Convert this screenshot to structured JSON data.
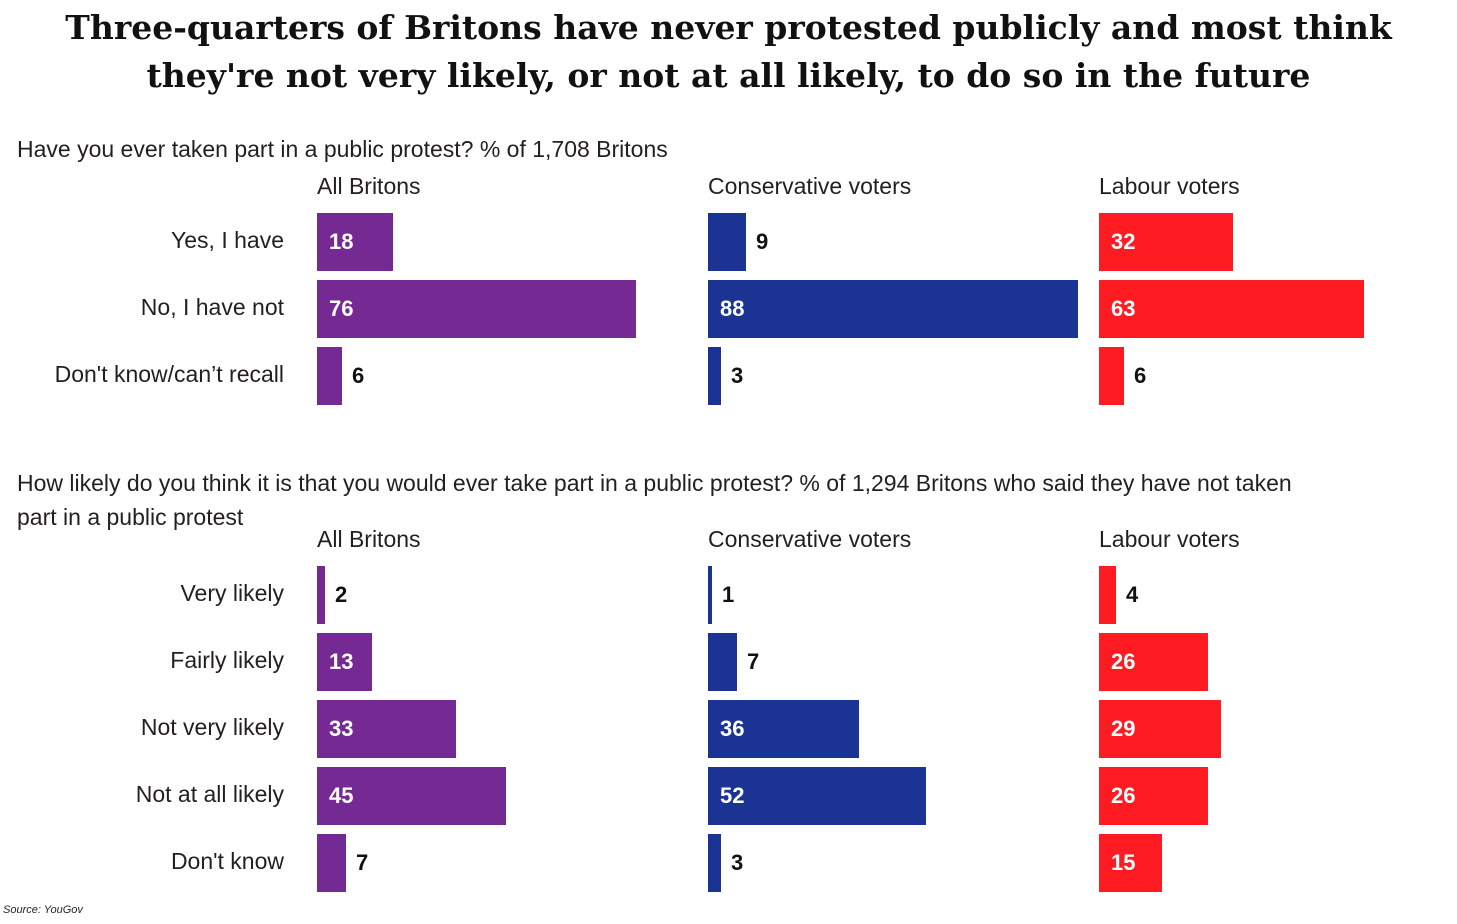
{
  "title": "Three-quarters of Britons have never protested publicly and most think they're not very likely, or not at all likely, to do so in the future",
  "source": "Source: YouGov",
  "colors": {
    "all": "#752a93",
    "con": "#1b3494",
    "lab": "#fe1b22"
  },
  "chart_data": [
    {
      "type": "bar",
      "orientation": "horizontal",
      "question": "Have you ever taken part in a public protest? % of 1,708 Britons",
      "categories": [
        "Yes, I have",
        "No, I have not",
        "Don't know/can’t recall"
      ],
      "series": [
        {
          "name": "All Britons",
          "values": [
            18,
            76,
            6
          ]
        },
        {
          "name": "Conservative voters",
          "values": [
            9,
            88,
            3
          ]
        },
        {
          "name": "Labour voters",
          "values": [
            32,
            63,
            6
          ]
        }
      ]
    },
    {
      "type": "bar",
      "orientation": "horizontal",
      "question": "How likely do you think it is that you would ever take part in a public protest? % of 1,294 Britons who said they have not taken part in a public protest",
      "categories": [
        "Very likely",
        "Fairly likely",
        "Not very likely",
        "Not at all likely",
        "Don't know"
      ],
      "series": [
        {
          "name": "All Britons",
          "values": [
            2,
            13,
            33,
            45,
            7
          ]
        },
        {
          "name": "Conservative voters",
          "values": [
            1,
            7,
            36,
            52,
            3
          ]
        },
        {
          "name": "Labour voters",
          "values": [
            4,
            26,
            29,
            26,
            15
          ]
        }
      ]
    }
  ]
}
